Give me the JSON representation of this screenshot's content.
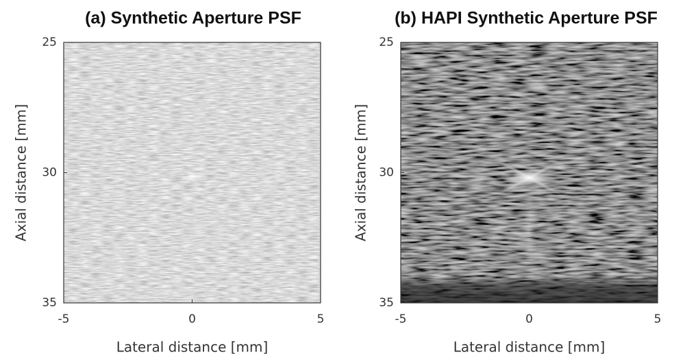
{
  "chart_data": [
    {
      "type": "image",
      "title": "(a) Synthetic Aperture PSF",
      "x_label": "Lateral distance [mm]",
      "y_label": "Axial distance [mm]",
      "xlim": [
        -5,
        5
      ],
      "xticks": [
        -5,
        0,
        5
      ],
      "ylim": [
        35,
        25
      ],
      "yticks": [
        25,
        30,
        35
      ]
    },
    {
      "type": "image",
      "title": "(b) HAPI Synthetic Aperture PSF",
      "x_label": "Lateral distance [mm]",
      "y_label": "Axial distance [mm]",
      "xlim": [
        -5,
        5
      ],
      "xticks": [
        -5,
        0,
        5
      ],
      "ylim": [
        35,
        25
      ],
      "yticks": [
        25,
        30,
        35
      ]
    }
  ]
}
